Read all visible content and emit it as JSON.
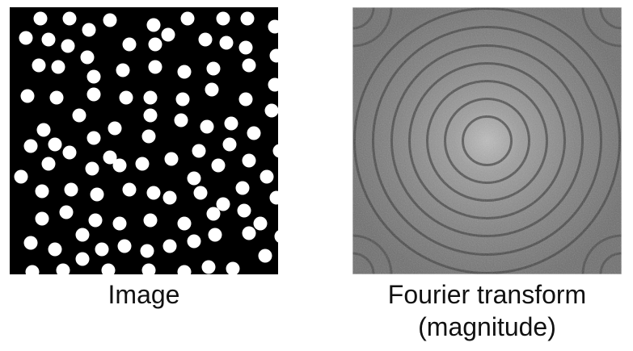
{
  "figures": {
    "left": {
      "caption": "Image",
      "background_color": "#000000",
      "dot_color": "#ffffff"
    },
    "right": {
      "caption_line1": "Fourier transform",
      "caption_line2": "(magnitude)",
      "background_color": "#7a7a7a",
      "ring_color": "#3a3a3a"
    }
  }
}
